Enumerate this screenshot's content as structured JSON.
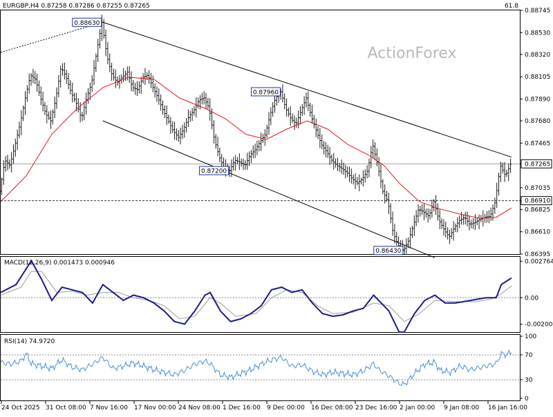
{
  "header": {
    "symbol_ohlc": "EURGBP,H4  0.87258 0.87286 0.87255 0.87265",
    "corner_value": "61.8"
  },
  "watermark": "ActionForex",
  "chart_data": [
    {
      "type": "candlestick",
      "symbol": "EURGBP",
      "timeframe": "H4",
      "ohlc_last": {
        "open": 0.87258,
        "high": 0.87286,
        "low": 0.87255,
        "close": 0.87265
      },
      "current_price": "0.87265",
      "ylim": [
        0.86395,
        0.88745
      ],
      "y_ticks": [
        "0.88745",
        "0.88530",
        "0.88320",
        "0.88105",
        "0.87890",
        "0.87680",
        "0.87465",
        "0.87265",
        "0.87035",
        "0.86910",
        "0.86825",
        "0.86610",
        "0.86395"
      ],
      "x_ticks": [
        "24 Oct 2025",
        "31 Oct 08:00",
        "7 Nov 16:00",
        "17 Nov 00:00",
        "24 Nov 08:00",
        "1 Dec 16:00",
        "9 Dec 00:00",
        "16 Dec 08:00",
        "23 Dec 16:00",
        "2 Jan 00:00",
        "9 Jan 08:00",
        "16 Jan 16:00"
      ],
      "price_path": [
        [
          0,
          0.87
        ],
        [
          2,
          0.873
        ],
        [
          4,
          0.8725
        ],
        [
          6,
          0.8745
        ],
        [
          8,
          0.8765
        ],
        [
          10,
          0.879
        ],
        [
          12,
          0.8812
        ],
        [
          14,
          0.8808
        ],
        [
          16,
          0.879
        ],
        [
          18,
          0.8775
        ],
        [
          20,
          0.8768
        ],
        [
          22,
          0.879
        ],
        [
          24,
          0.882
        ],
        [
          26,
          0.881
        ],
        [
          28,
          0.8795
        ],
        [
          30,
          0.8785
        ],
        [
          32,
          0.877
        ],
        [
          34,
          0.879
        ],
        [
          36,
          0.8805
        ],
        [
          38,
          0.8835
        ],
        [
          40,
          0.8863
        ],
        [
          42,
          0.883
        ],
        [
          44,
          0.8812
        ],
        [
          46,
          0.8805
        ],
        [
          48,
          0.881
        ],
        [
          50,
          0.8815
        ],
        [
          52,
          0.88
        ],
        [
          54,
          0.8798
        ],
        [
          56,
          0.881
        ],
        [
          58,
          0.8812
        ],
        [
          60,
          0.88
        ],
        [
          62,
          0.879
        ],
        [
          64,
          0.8778
        ],
        [
          66,
          0.8768
        ],
        [
          68,
          0.8758
        ],
        [
          70,
          0.8752
        ],
        [
          72,
          0.876
        ],
        [
          74,
          0.8772
        ],
        [
          76,
          0.8778
        ],
        [
          78,
          0.8788
        ],
        [
          80,
          0.879
        ],
        [
          82,
          0.878
        ],
        [
          84,
          0.875
        ],
        [
          86,
          0.8733
        ],
        [
          88,
          0.8722
        ],
        [
          90,
          0.872
        ],
        [
          92,
          0.873
        ],
        [
          94,
          0.8728
        ],
        [
          96,
          0.8725
        ],
        [
          98,
          0.8735
        ],
        [
          100,
          0.874
        ],
        [
          102,
          0.8748
        ],
        [
          104,
          0.8755
        ],
        [
          106,
          0.8775
        ],
        [
          108,
          0.879
        ],
        [
          110,
          0.8796
        ],
        [
          112,
          0.878
        ],
        [
          114,
          0.877
        ],
        [
          116,
          0.8765
        ],
        [
          118,
          0.8778
        ],
        [
          120,
          0.879
        ],
        [
          122,
          0.8772
        ],
        [
          124,
          0.8758
        ],
        [
          126,
          0.8745
        ],
        [
          128,
          0.8738
        ],
        [
          130,
          0.873
        ],
        [
          132,
          0.8725
        ],
        [
          134,
          0.8722
        ],
        [
          136,
          0.8718
        ],
        [
          138,
          0.8712
        ],
        [
          140,
          0.8708
        ],
        [
          142,
          0.8712
        ],
        [
          144,
          0.872
        ],
        [
          146,
          0.8745
        ],
        [
          148,
          0.8725
        ],
        [
          150,
          0.87
        ],
        [
          152,
          0.869
        ],
        [
          154,
          0.866
        ],
        [
          156,
          0.8648
        ],
        [
          158,
          0.8643
        ],
        [
          160,
          0.8652
        ],
        [
          162,
          0.8668
        ],
        [
          164,
          0.8683
        ],
        [
          166,
          0.868
        ],
        [
          168,
          0.8676
        ],
        [
          170,
          0.869
        ],
        [
          172,
          0.8672
        ],
        [
          174,
          0.8663
        ],
        [
          176,
          0.8656
        ],
        [
          178,
          0.8665
        ],
        [
          180,
          0.8672
        ],
        [
          182,
          0.8675
        ],
        [
          184,
          0.8668
        ],
        [
          186,
          0.867
        ],
        [
          188,
          0.8673
        ],
        [
          190,
          0.8675
        ],
        [
          192,
          0.8676
        ],
        [
          194,
          0.869
        ],
        [
          196,
          0.8725
        ],
        [
          198,
          0.8715
        ],
        [
          200,
          0.8726
        ]
      ],
      "moving_average": [
        [
          0,
          0.869
        ],
        [
          10,
          0.8715
        ],
        [
          20,
          0.8755
        ],
        [
          30,
          0.878
        ],
        [
          40,
          0.88
        ],
        [
          50,
          0.881
        ],
        [
          60,
          0.8808
        ],
        [
          70,
          0.879
        ],
        [
          80,
          0.878
        ],
        [
          88,
          0.877
        ],
        [
          96,
          0.8755
        ],
        [
          104,
          0.875
        ],
        [
          112,
          0.876
        ],
        [
          120,
          0.8768
        ],
        [
          128,
          0.876
        ],
        [
          136,
          0.8745
        ],
        [
          144,
          0.8735
        ],
        [
          150,
          0.8725
        ],
        [
          156,
          0.8708
        ],
        [
          164,
          0.869
        ],
        [
          172,
          0.8683
        ],
        [
          180,
          0.8678
        ],
        [
          188,
          0.8674
        ],
        [
          194,
          0.8675
        ],
        [
          200,
          0.8684
        ]
      ],
      "annotations": [
        {
          "label": "0.88630",
          "x": 40,
          "y": 0.8863
        },
        {
          "label": "0.87960",
          "x": 110,
          "y": 0.8796
        },
        {
          "label": "0.87200",
          "x": 90,
          "y": 0.872
        },
        {
          "label": "0.86430",
          "x": 158,
          "y": 0.8643
        }
      ],
      "horizontal_levels": [
        {
          "label": "0.87265",
          "y": 0.87265,
          "style": "solid"
        },
        {
          "label": "0.86910",
          "y": 0.8691,
          "style": "dashed"
        }
      ],
      "channel_upper": [
        [
          0,
          0.8834
        ],
        [
          40,
          0.8863
        ],
        [
          200,
          0.8733
        ]
      ],
      "channel_lower": [
        [
          40,
          0.8768
        ],
        [
          170,
          0.8636
        ]
      ],
      "grid": false
    },
    {
      "type": "line",
      "name": "MACD",
      "title": "MACD(12,26,9) 0.001473 0.000946",
      "ylim": [
        -0.0026,
        0.0031
      ],
      "y_ticks": [
        "0.002764",
        "0.00",
        "-0.002005"
      ],
      "zero_line": 0,
      "macd": [
        [
          0,
          0.0004
        ],
        [
          6,
          0.001
        ],
        [
          10,
          0.0022
        ],
        [
          12,
          0.0028
        ],
        [
          16,
          0.0014
        ],
        [
          20,
          -0.0002
        ],
        [
          24,
          0.0008
        ],
        [
          28,
          0.0006
        ],
        [
          32,
          0.0004
        ],
        [
          36,
          -0.0004
        ],
        [
          40,
          0.001
        ],
        [
          44,
          0.0004
        ],
        [
          48,
          -0.0002
        ],
        [
          52,
          0.0002
        ],
        [
          56,
          0.0
        ],
        [
          60,
          -0.0004
        ],
        [
          64,
          -0.001
        ],
        [
          68,
          -0.0018
        ],
        [
          72,
          -0.002
        ],
        [
          76,
          -0.001
        ],
        [
          80,
          0.0002
        ],
        [
          82,
          0.0004
        ],
        [
          86,
          -0.001
        ],
        [
          90,
          -0.0018
        ],
        [
          94,
          -0.0016
        ],
        [
          98,
          -0.0012
        ],
        [
          102,
          -0.0006
        ],
        [
          106,
          0.0006
        ],
        [
          110,
          0.0008
        ],
        [
          114,
          0.0004
        ],
        [
          118,
          0.0006
        ],
        [
          122,
          -0.0004
        ],
        [
          126,
          -0.0012
        ],
        [
          130,
          -0.0014
        ],
        [
          134,
          -0.0013
        ],
        [
          138,
          -0.001
        ],
        [
          142,
          -0.0008
        ],
        [
          146,
          0.0002
        ],
        [
          150,
          -0.0006
        ],
        [
          152,
          -0.001
        ],
        [
          156,
          -0.0026
        ],
        [
          158,
          -0.0026
        ],
        [
          162,
          -0.0012
        ],
        [
          166,
          -0.0002
        ],
        [
          170,
          0.0002
        ],
        [
          174,
          -0.0004
        ],
        [
          178,
          -0.0004
        ],
        [
          184,
          -0.0002
        ],
        [
          190,
          0.0
        ],
        [
          194,
          0.0
        ],
        [
          196,
          0.001
        ],
        [
          200,
          0.0015
        ]
      ],
      "signal": [
        [
          0,
          0.0002
        ],
        [
          8,
          0.0008
        ],
        [
          12,
          0.002
        ],
        [
          16,
          0.002
        ],
        [
          22,
          0.0004
        ],
        [
          28,
          0.0005
        ],
        [
          34,
          0.0002
        ],
        [
          40,
          0.0004
        ],
        [
          46,
          0.0004
        ],
        [
          52,
          0.0
        ],
        [
          58,
          -0.0002
        ],
        [
          64,
          -0.0006
        ],
        [
          70,
          -0.0016
        ],
        [
          76,
          -0.0014
        ],
        [
          82,
          0.0
        ],
        [
          86,
          -0.0004
        ],
        [
          92,
          -0.0014
        ],
        [
          100,
          -0.0012
        ],
        [
          106,
          0.0
        ],
        [
          112,
          0.0006
        ],
        [
          118,
          0.0004
        ],
        [
          124,
          -0.0006
        ],
        [
          130,
          -0.0012
        ],
        [
          138,
          -0.0011
        ],
        [
          146,
          -0.0004
        ],
        [
          152,
          -0.0006
        ],
        [
          158,
          -0.0018
        ],
        [
          164,
          -0.0012
        ],
        [
          170,
          -0.0002
        ],
        [
          178,
          -0.0003
        ],
        [
          186,
          -0.0003
        ],
        [
          192,
          -0.0001
        ],
        [
          196,
          0.0003
        ],
        [
          200,
          0.0009
        ]
      ]
    },
    {
      "type": "line",
      "name": "RSI(14)",
      "title": "RSI(14) 74.9720",
      "ylim": [
        0,
        100
      ],
      "y_ticks": [
        "100",
        "70",
        "30",
        "0"
      ],
      "levels": [
        70,
        30
      ],
      "rsi": [
        [
          0,
          58
        ],
        [
          4,
          55
        ],
        [
          8,
          60
        ],
        [
          10,
          72
        ],
        [
          12,
          56
        ],
        [
          16,
          52
        ],
        [
          20,
          48
        ],
        [
          24,
          62
        ],
        [
          28,
          50
        ],
        [
          32,
          46
        ],
        [
          36,
          55
        ],
        [
          40,
          66
        ],
        [
          44,
          48
        ],
        [
          48,
          52
        ],
        [
          52,
          57
        ],
        [
          56,
          52
        ],
        [
          60,
          46
        ],
        [
          64,
          42
        ],
        [
          68,
          38
        ],
        [
          72,
          45
        ],
        [
          76,
          55
        ],
        [
          80,
          60
        ],
        [
          82,
          56
        ],
        [
          86,
          38
        ],
        [
          90,
          34
        ],
        [
          94,
          40
        ],
        [
          98,
          46
        ],
        [
          102,
          55
        ],
        [
          106,
          62
        ],
        [
          110,
          66
        ],
        [
          114,
          52
        ],
        [
          118,
          54
        ],
        [
          122,
          44
        ],
        [
          126,
          38
        ],
        [
          130,
          42
        ],
        [
          134,
          40
        ],
        [
          138,
          38
        ],
        [
          142,
          44
        ],
        [
          146,
          56
        ],
        [
          148,
          46
        ],
        [
          152,
          36
        ],
        [
          156,
          24
        ],
        [
          158,
          22
        ],
        [
          162,
          40
        ],
        [
          166,
          55
        ],
        [
          170,
          58
        ],
        [
          172,
          45
        ],
        [
          176,
          42
        ],
        [
          180,
          52
        ],
        [
          184,
          46
        ],
        [
          188,
          50
        ],
        [
          192,
          54
        ],
        [
          194,
          56
        ],
        [
          196,
          72
        ],
        [
          198,
          70
        ],
        [
          200,
          75
        ]
      ]
    }
  ],
  "colors": {
    "price": "#1a1a1a",
    "moving_average": "#e0141e",
    "macd": "#1a1a8c",
    "signal": "#9a9a9a",
    "rsi": "#4a8fd8",
    "label_border": "#1e2fb0",
    "watermark": "#b8b8b8"
  }
}
